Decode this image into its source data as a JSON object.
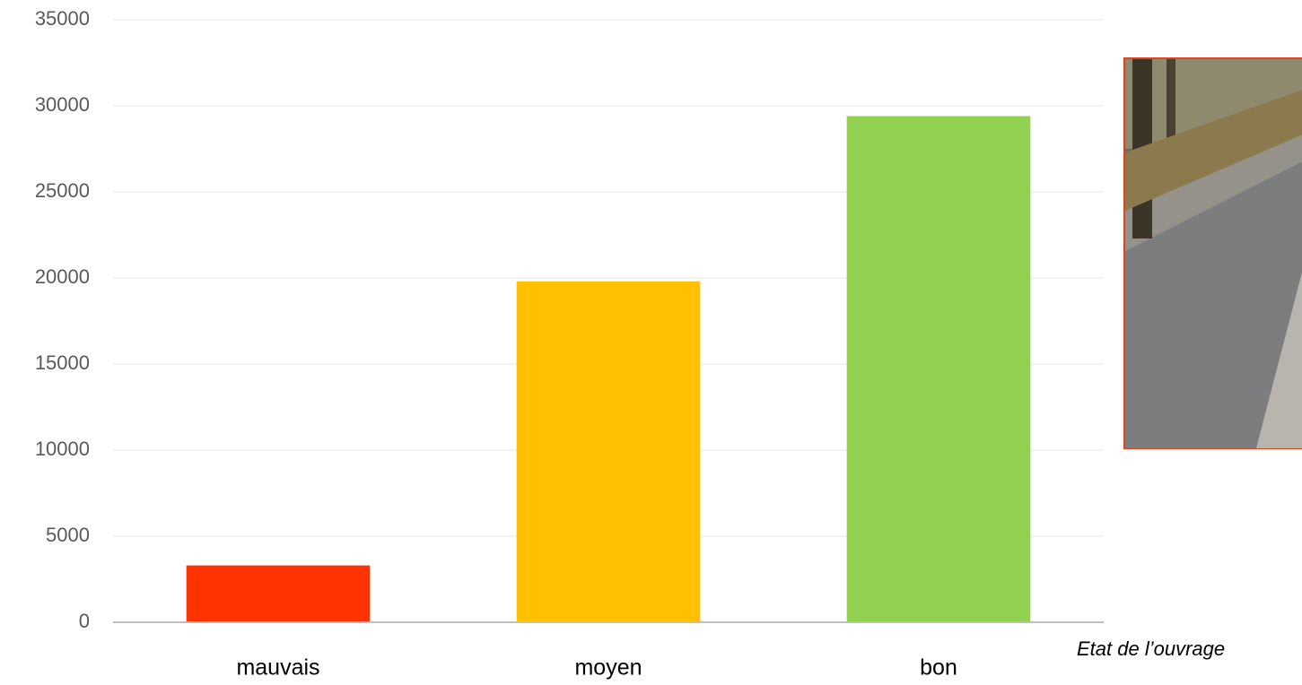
{
  "chart_data": {
    "type": "bar",
    "categories": [
      "mauvais",
      "moyen",
      "bon"
    ],
    "values": [
      3300,
      19800,
      29400
    ],
    "colors": [
      "#ff3300",
      "#ffc000",
      "#92d050"
    ],
    "ylim": [
      0,
      35000
    ],
    "yticks": [
      0,
      5000,
      10000,
      15000,
      20000,
      25000,
      30000,
      35000
    ],
    "grid": true,
    "annotation": "Etat de l’ouvrage"
  }
}
